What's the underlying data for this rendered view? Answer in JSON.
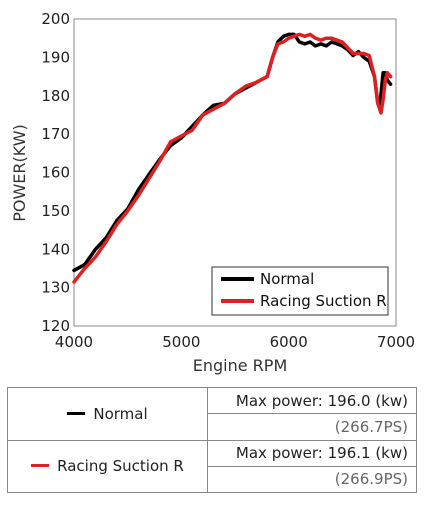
{
  "chart_data": {
    "type": "line",
    "xlabel": "Engine RPM",
    "ylabel": "POWER(KW)",
    "xlim": [
      4000,
      7000
    ],
    "ylim": [
      120,
      200
    ],
    "xticks": [
      4000,
      5000,
      6000,
      7000
    ],
    "yticks": [
      120,
      130,
      140,
      150,
      160,
      170,
      180,
      190,
      200
    ],
    "grid": false,
    "legend_position": "bottom-right",
    "series": [
      {
        "name": "Normal",
        "color": "#000000",
        "points": [
          [
            4000,
            134.5
          ],
          [
            4100,
            136
          ],
          [
            4200,
            140
          ],
          [
            4300,
            143
          ],
          [
            4400,
            147.5
          ],
          [
            4500,
            150.5
          ],
          [
            4600,
            155.5
          ],
          [
            4700,
            159.5
          ],
          [
            4800,
            163.5
          ],
          [
            4900,
            167
          ],
          [
            5000,
            169
          ],
          [
            5100,
            172
          ],
          [
            5200,
            175
          ],
          [
            5300,
            177.5
          ],
          [
            5400,
            178
          ],
          [
            5500,
            180.5
          ],
          [
            5600,
            182
          ],
          [
            5700,
            183.5
          ],
          [
            5800,
            185
          ],
          [
            5850,
            190
          ],
          [
            5900,
            194
          ],
          [
            5950,
            195.5
          ],
          [
            6000,
            196
          ],
          [
            6050,
            196
          ],
          [
            6100,
            194
          ],
          [
            6150,
            193.5
          ],
          [
            6200,
            194
          ],
          [
            6250,
            193
          ],
          [
            6300,
            193.5
          ],
          [
            6350,
            193
          ],
          [
            6400,
            194
          ],
          [
            6450,
            193.5
          ],
          [
            6500,
            193
          ],
          [
            6550,
            192
          ],
          [
            6600,
            190.5
          ],
          [
            6650,
            191.5
          ],
          [
            6700,
            190
          ],
          [
            6750,
            189
          ],
          [
            6800,
            185
          ],
          [
            6830,
            178
          ],
          [
            6850,
            177.5
          ],
          [
            6880,
            186
          ],
          [
            6900,
            186
          ],
          [
            6920,
            184
          ],
          [
            6950,
            183
          ]
        ]
      },
      {
        "name": "Racing Suction R",
        "color": "#e02020",
        "points": [
          [
            4000,
            131.5
          ],
          [
            4100,
            135
          ],
          [
            4200,
            138
          ],
          [
            4300,
            142
          ],
          [
            4400,
            146.5
          ],
          [
            4500,
            150
          ],
          [
            4600,
            154
          ],
          [
            4700,
            158.5
          ],
          [
            4800,
            163
          ],
          [
            4900,
            168
          ],
          [
            5000,
            169.5
          ],
          [
            5100,
            171
          ],
          [
            5200,
            175
          ],
          [
            5300,
            176.5
          ],
          [
            5400,
            178
          ],
          [
            5500,
            180.5
          ],
          [
            5600,
            182.5
          ],
          [
            5700,
            183.5
          ],
          [
            5800,
            185
          ],
          [
            5850,
            190
          ],
          [
            5900,
            193.5
          ],
          [
            5950,
            194
          ],
          [
            6000,
            195
          ],
          [
            6050,
            195.5
          ],
          [
            6100,
            196
          ],
          [
            6150,
            195.5
          ],
          [
            6200,
            196
          ],
          [
            6250,
            195
          ],
          [
            6300,
            194.5
          ],
          [
            6350,
            195
          ],
          [
            6400,
            195
          ],
          [
            6450,
            194.5
          ],
          [
            6500,
            194
          ],
          [
            6550,
            192.5
          ],
          [
            6600,
            191
          ],
          [
            6650,
            191
          ],
          [
            6700,
            191
          ],
          [
            6750,
            190.5
          ],
          [
            6800,
            185
          ],
          [
            6830,
            178
          ],
          [
            6860,
            175.5
          ],
          [
            6880,
            179
          ],
          [
            6900,
            184
          ],
          [
            6920,
            186
          ],
          [
            6950,
            185
          ]
        ]
      }
    ]
  },
  "table": {
    "rows": [
      {
        "name": "Normal",
        "color": "#000000",
        "max_power": "Max power: 196.0 (kw)",
        "ps": "(266.7PS)"
      },
      {
        "name": "Racing Suction R",
        "color": "#e02020",
        "max_power": "Max power: 196.1 (kw)",
        "ps": "(266.9PS)"
      }
    ]
  }
}
